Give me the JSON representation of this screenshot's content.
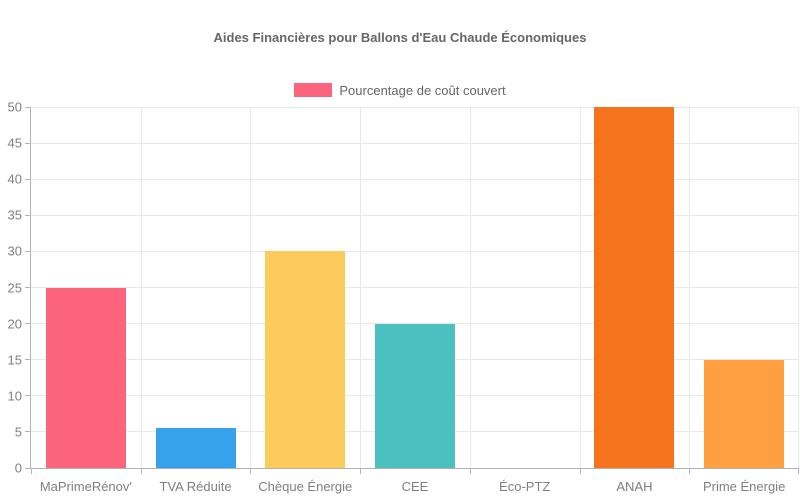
{
  "chart_data": {
    "type": "bar",
    "title": "Aides Financières pour Ballons d'Eau Chaude Économiques",
    "categories": [
      "MaPrimeRénov'",
      "TVA Réduite",
      "Chèque Énergie",
      "CEE",
      "Éco-PTZ",
      "ANAH",
      "Prime Énergie"
    ],
    "values": [
      25,
      5.5,
      30,
      20,
      0,
      50,
      15
    ],
    "bar_colors": [
      "#FC637D",
      "#36A2EB",
      "#FDCA5C",
      "#4BC0C0",
      null,
      "#F4731C",
      "#FF9F40"
    ],
    "series": [
      {
        "name": "Pourcentage de coût couvert",
        "values": [
          25,
          5.5,
          30,
          20,
          0,
          50,
          15
        ]
      }
    ],
    "xlabel": "",
    "ylabel": "",
    "ylim": [
      0,
      50
    ],
    "yticks": [
      0,
      5,
      10,
      15,
      20,
      25,
      30,
      35,
      40,
      45,
      50
    ],
    "grid": true,
    "legend_position": "top"
  },
  "legend": {
    "label": "Pourcentage de coût couvert",
    "color": "#FC637D"
  },
  "colors": {
    "grid": "#E9E9E9",
    "axis": "#B3B3B3",
    "tick_label": "#7F7F7F",
    "title_text": "#666666",
    "legend_text": "#666666",
    "background": "#FFFFFF"
  }
}
